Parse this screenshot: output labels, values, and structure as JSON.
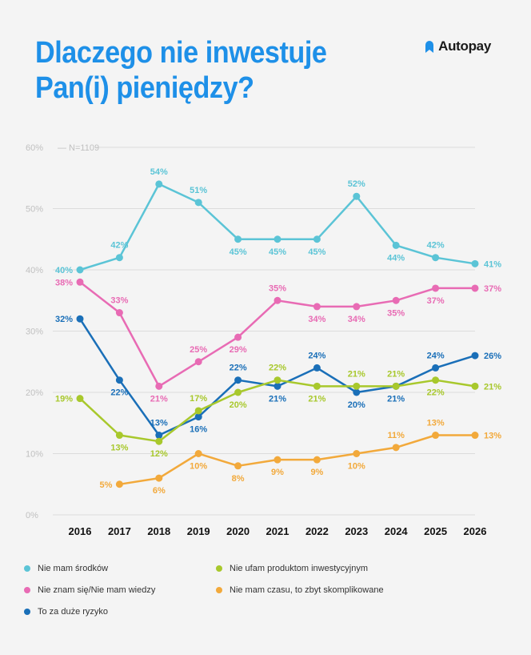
{
  "header": {
    "title_line1": "Dlaczego nie inwestuje",
    "title_line2": "Pan(i) pieniędzy?",
    "logo_text": "Autopay"
  },
  "colors": {
    "title": "#1e90e8",
    "grid": "#dcdcdc",
    "axis_text": "#c0c0c0"
  },
  "chart_data": {
    "type": "line",
    "annotation": "N=1109",
    "ylim": [
      0,
      60
    ],
    "yticks": [
      "0%",
      "10%",
      "20%",
      "30%",
      "40%",
      "50%",
      "60%"
    ],
    "x": [
      "2016",
      "2017",
      "2018",
      "2019",
      "2020",
      "2021",
      "2022",
      "2023",
      "2024",
      "2025",
      "2026"
    ],
    "grid": true,
    "legend_position": "bottom",
    "series": [
      {
        "name": "Nie mam środków",
        "color": "#5bc4d6",
        "values": [
          40,
          42,
          54,
          51,
          45,
          45,
          45,
          52,
          44,
          42,
          41
        ],
        "labels": [
          "40%",
          "42%",
          "54%",
          "51%",
          "45%",
          "45%",
          "45%",
          "52%",
          "44%",
          "42%",
          "41%"
        ]
      },
      {
        "name": "Nie znam się/Nie mam wiedzy",
        "color": "#e86bb4",
        "values": [
          38,
          33,
          21,
          25,
          29,
          35,
          34,
          34,
          35,
          37,
          37
        ],
        "labels": [
          "38%",
          "33%",
          "21%",
          "25%",
          "29%",
          "35%",
          "34%",
          "34%",
          "35%",
          "37%",
          "37%"
        ]
      },
      {
        "name": "To za duże ryzyko",
        "color": "#1a6fb8",
        "values": [
          32,
          22,
          13,
          16,
          22,
          21,
          24,
          20,
          21,
          24,
          26
        ],
        "labels": [
          "32%",
          "22%",
          "13%",
          "16%",
          "22%",
          "21%",
          "24%",
          "20%",
          "21%",
          "24%",
          "26%"
        ]
      },
      {
        "name": "Nie ufam produktom inwestycyjnym",
        "color": "#a8c82c",
        "values": [
          19,
          13,
          12,
          17,
          20,
          22,
          21,
          21,
          21,
          22,
          21
        ],
        "labels": [
          "19%",
          "13%",
          "12%",
          "17%",
          "20%",
          "22%",
          "21%",
          "21%",
          "21%",
          "22%",
          "21%"
        ]
      },
      {
        "name": "Nie mam czasu, to zbyt skomplikowane",
        "color": "#f2a93b",
        "values": [
          null,
          5,
          6,
          10,
          8,
          9,
          9,
          10,
          11,
          13,
          13
        ],
        "labels": [
          null,
          "5%",
          "6%",
          "10%",
          "8%",
          "9%",
          "9%",
          "10%",
          "11%",
          "13%",
          "13%"
        ]
      }
    ]
  }
}
